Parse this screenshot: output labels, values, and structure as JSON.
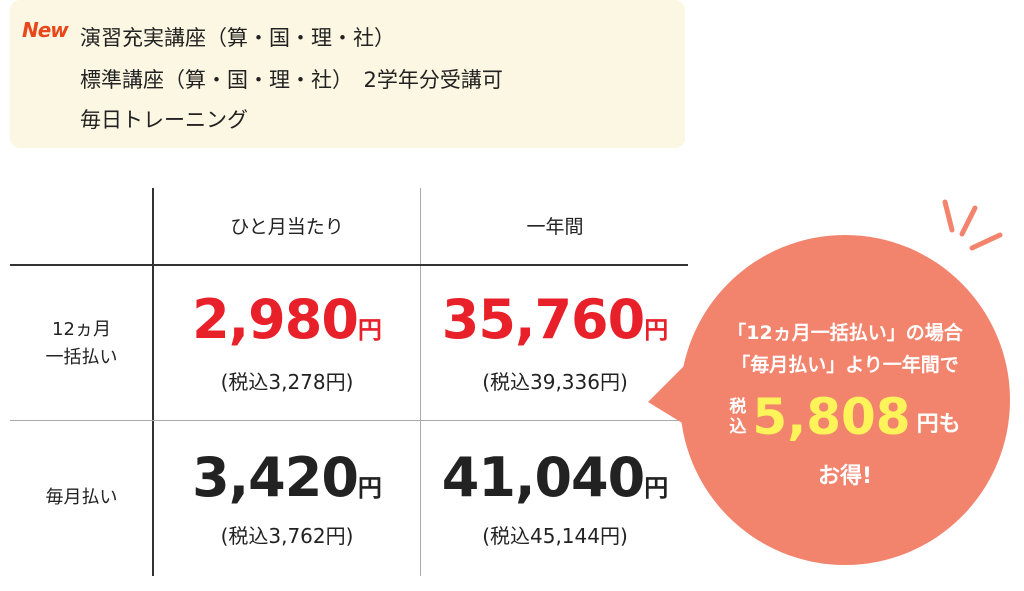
{
  "header": {
    "badge": "New",
    "lines": [
      "演習充実講座（算・国・理・社）",
      "標準講座（算・国・理・社）　2学年分受講可",
      "毎日トレーニング"
    ]
  },
  "table": {
    "columns": [
      "ひと月当たり",
      "一年間"
    ],
    "rows": [
      {
        "label": [
          "12ヵ月",
          "一括払い"
        ],
        "cells": [
          {
            "price": "2,980",
            "unit": "円",
            "tax": "(税込3,278円)"
          },
          {
            "price": "35,760",
            "unit": "円",
            "tax": "(税込39,336円)"
          }
        ]
      },
      {
        "label": [
          "毎月払い"
        ],
        "cells": [
          {
            "price": "3,420",
            "unit": "円",
            "tax": "(税込3,762円)"
          },
          {
            "price": "41,040",
            "unit": "円",
            "tax": "(税込45,144円)"
          }
        ]
      }
    ]
  },
  "callout": {
    "lines": [
      "「12ヵ月一括払い」の場合",
      "「毎月払い」より一年間で"
    ],
    "tax_label": [
      "税",
      "込"
    ],
    "amount": "5,808",
    "suffix": "円も",
    "last": "お得!"
  }
}
